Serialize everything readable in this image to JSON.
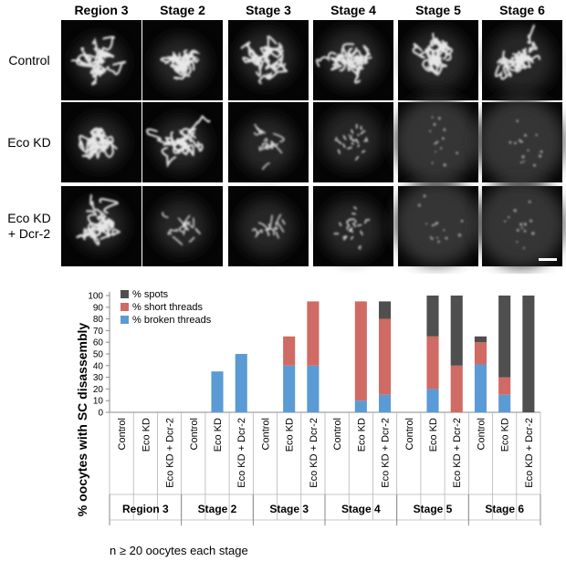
{
  "micrographs": {
    "columns": [
      "Region 3",
      "Stage 2",
      "Stage 3",
      "Stage 4",
      "Stage 5",
      "Stage 6"
    ],
    "rows": [
      "Control",
      "Eco KD",
      "Eco KD + Dcr-2"
    ]
  },
  "chart_data": {
    "type": "bar",
    "stacked": true,
    "ylabel": "% oocytes with SC disassembly",
    "ylim": [
      0,
      100
    ],
    "yticks": [
      0,
      10,
      20,
      30,
      40,
      50,
      60,
      70,
      80,
      90,
      100
    ],
    "grid": false,
    "legend_position": "top-left",
    "groups": [
      "Region 3",
      "Stage 2",
      "Stage 3",
      "Stage 4",
      "Stage 5",
      "Stage 6"
    ],
    "categories": [
      "Control",
      "Eco KD",
      "Eco KD + Dcr-2",
      "Control",
      "Eco KD",
      "Eco KD + Dcr-2",
      "Control",
      "Eco KD",
      "Eco KD + Dcr-2",
      "Control",
      "Eco KD",
      "Eco KD + Dcr-2",
      "Control",
      "Eco KD",
      "Eco KD + Dcr-2",
      "Control",
      "Eco KD",
      "Eco KD + Dcr-2"
    ],
    "series": [
      {
        "name": "% broken threads",
        "color": "#5b9bd5",
        "values": [
          0,
          0,
          0,
          0,
          35,
          50,
          0,
          40,
          40,
          0,
          10,
          15,
          0,
          20,
          0,
          41,
          15,
          0
        ]
      },
      {
        "name": "% short threads",
        "color": "#d06a64",
        "values": [
          0,
          0,
          0,
          0,
          0,
          0,
          0,
          25,
          55,
          0,
          85,
          65,
          0,
          45,
          40,
          19,
          15,
          0
        ]
      },
      {
        "name": "% spots",
        "color": "#4f4f4f",
        "values": [
          0,
          0,
          0,
          0,
          0,
          0,
          0,
          0,
          0,
          0,
          0,
          15,
          0,
          35,
          60,
          5,
          70,
          100
        ]
      }
    ],
    "footnote": "n ≥ 20 oocytes each stage"
  }
}
